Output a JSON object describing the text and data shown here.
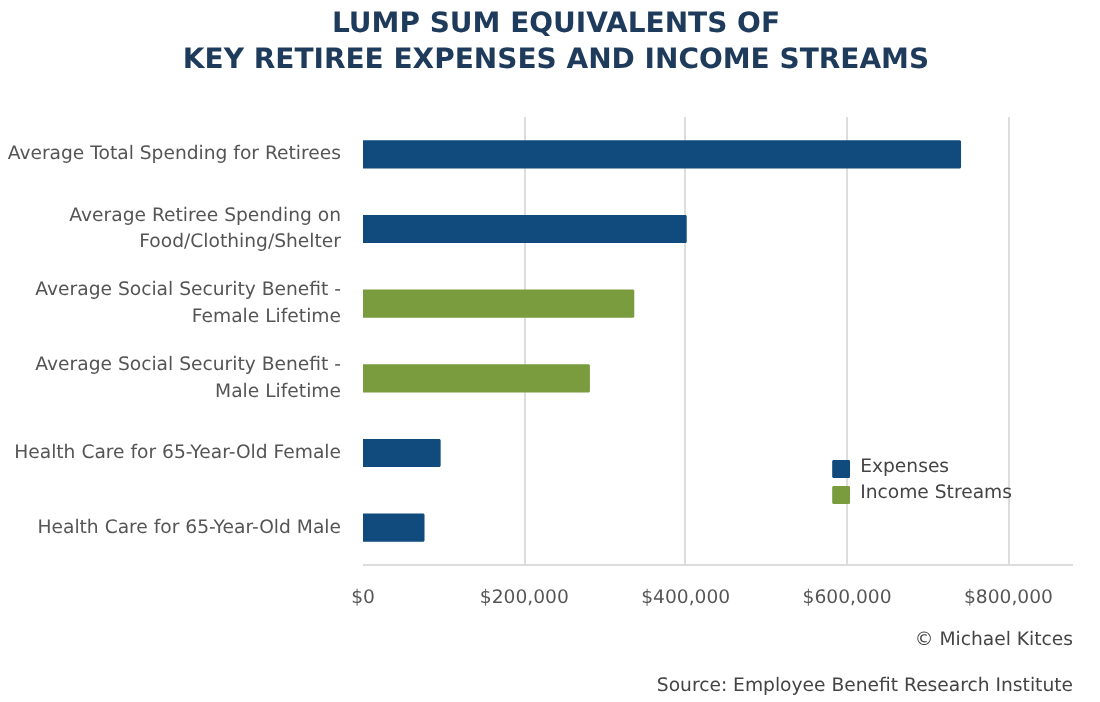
{
  "chart_data": {
    "type": "bar",
    "orientation": "horizontal",
    "title": "LUMP SUM EQUIVALENTS OF\nKEY RETIREE EXPENSES AND INCOME STREAMS",
    "categories": [
      "Average Total Spending for Retirees",
      "Average Retiree Spending on Food/Clothing/Shelter",
      "Average Social Security Benefit - Female Lifetime",
      "Average Social Security Benefit - Male Lifetime",
      "Health Care for 65-Year-Old Female",
      "Health Care for 65-Year-Old Male"
    ],
    "series": [
      {
        "name": "Expenses",
        "color": "#114a7d",
        "values": [
          740000,
          400000,
          null,
          null,
          95000,
          75000
        ]
      },
      {
        "name": "Income Streams",
        "color": "#7a9c3e",
        "values": [
          null,
          null,
          335000,
          280000,
          null,
          null
        ]
      }
    ],
    "xlim": [
      0,
      880000
    ],
    "xticks": [
      {
        "value": 0,
        "label": "$0"
      },
      {
        "value": 200000,
        "label": "$200,000"
      },
      {
        "value": 400000,
        "label": "$400,000"
      },
      {
        "value": 600000,
        "label": "$600,000"
      },
      {
        "value": 800000,
        "label": "$800,000"
      }
    ],
    "grid": "x",
    "legend": "bottom right",
    "annotations": [
      "© Michael Kitces",
      "Source: Employee Benefit Research Institute"
    ]
  }
}
